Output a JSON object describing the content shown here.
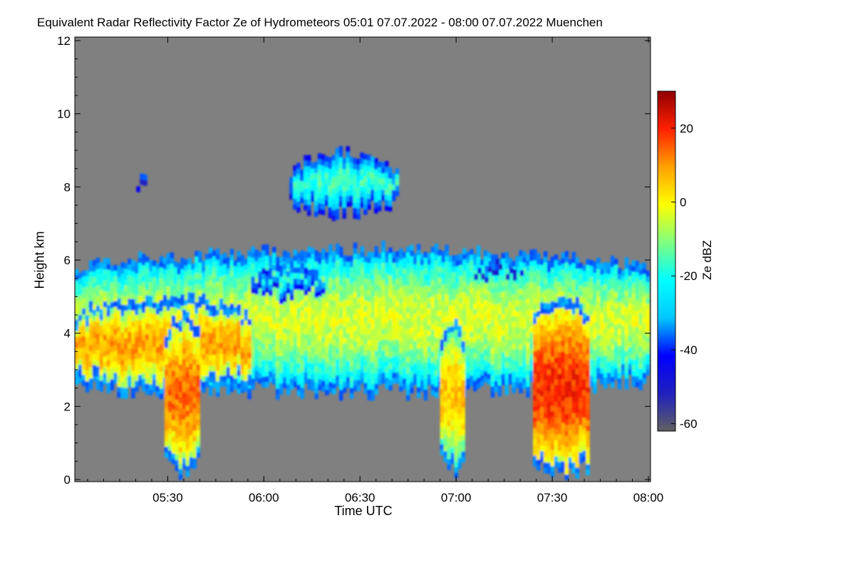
{
  "chart_data": {
    "type": "heatmap",
    "title": "Equivalent Radar Reflectivity Factor Ze of Hydrometeors   05:01 07.07.2022 - 08:00 07.07.2022 Muenchen",
    "xlabel": "Time UTC",
    "ylabel": "Height km",
    "colorbar_label": "Ze dBZ",
    "x_ticks": [
      "05:30",
      "06:00",
      "06:30",
      "07:00",
      "07:30",
      "08:00"
    ],
    "x_tick_minutes": [
      29,
      59,
      89,
      119,
      149,
      179
    ],
    "xlim_minutes": [
      0,
      179
    ],
    "y_ticks": [
      0,
      2,
      4,
      6,
      8,
      10,
      12
    ],
    "ylim": [
      0,
      12
    ],
    "colorbar_ticks": [
      20,
      0,
      -20,
      -40,
      -60
    ],
    "colorbar_range": [
      -62,
      30
    ],
    "background_color": "#808080",
    "colormap": [
      "#606060",
      "#2020c0",
      "#0000ff",
      "#00c8ff",
      "#00ffff",
      "#80ff80",
      "#ffff00",
      "#ffa000",
      "#ff2000",
      "#900000"
    ],
    "features": [
      {
        "name": "main-cloud-layer",
        "t_start": 0,
        "t_end": 179,
        "base_km": 2.3,
        "top_km": 6.4,
        "mean_dbz": -8
      },
      {
        "name": "thick-core-1",
        "t_start": 0,
        "t_end": 55,
        "base_km": 2.3,
        "top_km": 5.1,
        "mean_dbz": 5
      },
      {
        "name": "precip-shaft-1",
        "t_start": 28,
        "t_end": 38,
        "base_km": 0,
        "top_km": 4.6,
        "mean_dbz": 10
      },
      {
        "name": "upper-patch-1",
        "t_start": 55,
        "t_end": 78,
        "base_km": 4.9,
        "top_km": 6.0,
        "mean_dbz": -22
      },
      {
        "name": "cirrus-fallstreaks",
        "t_start": 67,
        "t_end": 100,
        "base_km": 7.2,
        "top_km": 9.0,
        "mean_dbz": -20
      },
      {
        "name": "small-echoes",
        "t_start": 17,
        "t_end": 25,
        "base_km": 7.9,
        "top_km": 8.4,
        "mean_dbz": -25
      },
      {
        "name": "upper-patch-2",
        "t_start": 118,
        "t_end": 147,
        "base_km": 5.5,
        "top_km": 5.9,
        "mean_dbz": -28
      },
      {
        "name": "precip-shaft-2",
        "t_start": 114,
        "t_end": 121,
        "base_km": 0.1,
        "top_km": 4.4,
        "mean_dbz": 2
      },
      {
        "name": "convective-cell",
        "t_start": 143,
        "t_end": 160,
        "base_km": 0,
        "top_km": 5.1,
        "mean_dbz": 15
      }
    ]
  }
}
